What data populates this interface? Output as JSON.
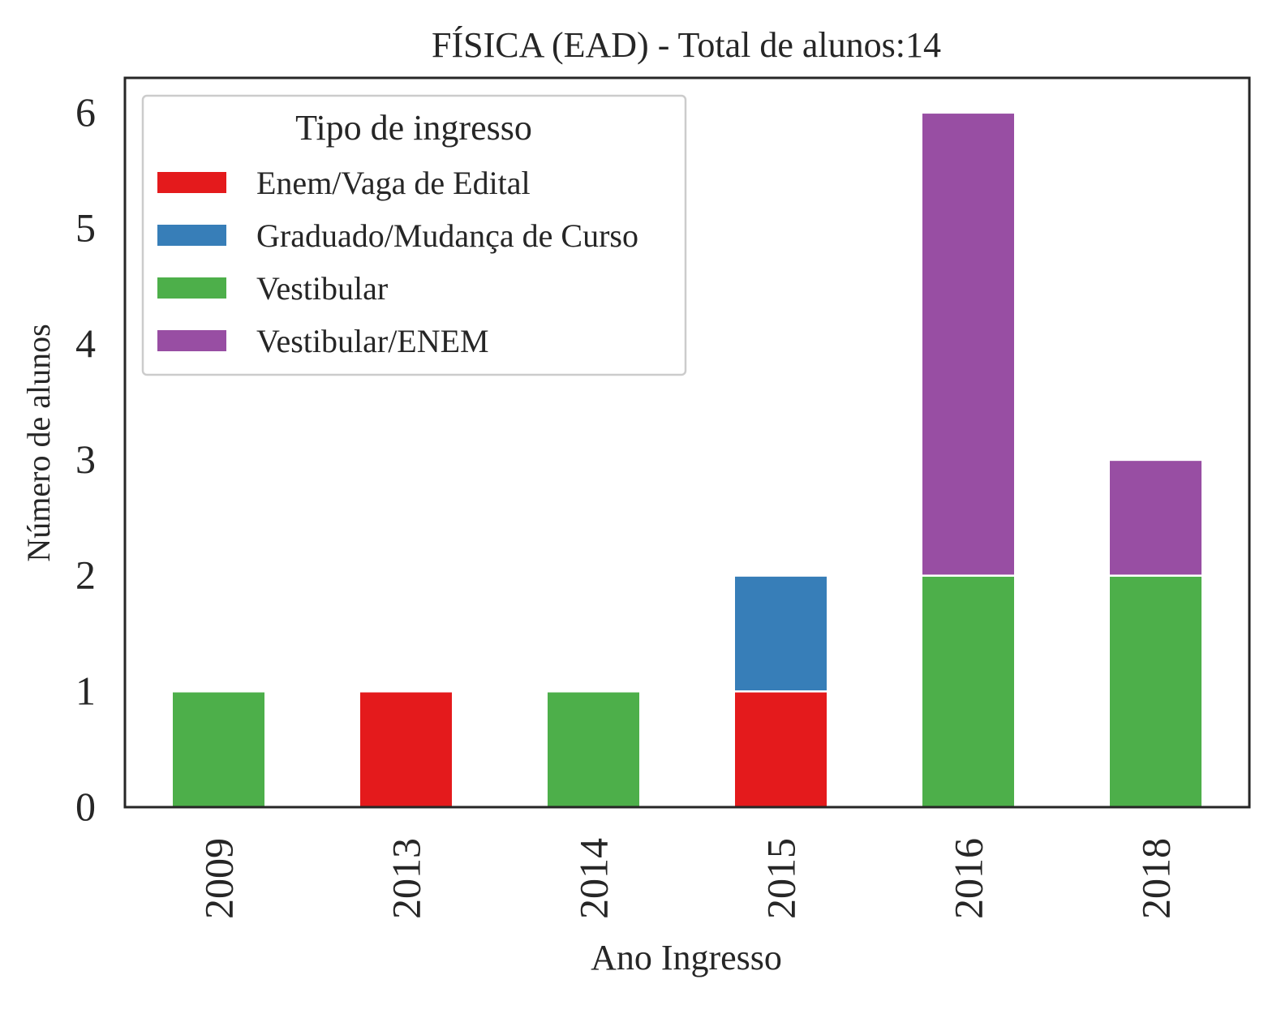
{
  "chart_data": {
    "type": "bar",
    "stacked": true,
    "title": "FÍSICA (EAD) - Total de alunos:14",
    "xlabel": "Ano Ingresso",
    "ylabel": "Número de alunos",
    "categories": [
      "2009",
      "2013",
      "2014",
      "2015",
      "2016",
      "2018"
    ],
    "yticks": [
      "0",
      "1",
      "2",
      "3",
      "4",
      "5",
      "6"
    ],
    "ylim": [
      0,
      6.3
    ],
    "grid": false,
    "legend": {
      "title": "Tipo de ingresso",
      "placement": "top-left"
    },
    "series": [
      {
        "name": "Enem/Vaga de Edital",
        "color": "#e41a1c",
        "values": [
          0,
          1,
          0,
          1,
          0,
          0
        ]
      },
      {
        "name": "Graduado/Mudança de Curso",
        "color": "#377eb8",
        "values": [
          0,
          0,
          0,
          1,
          0,
          0
        ]
      },
      {
        "name": "Vestibular",
        "color": "#4daf4a",
        "values": [
          1,
          0,
          1,
          0,
          2,
          2
        ]
      },
      {
        "name": "Vestibular/ENEM",
        "color": "#984ea3",
        "values": [
          0,
          0,
          0,
          0,
          4,
          1
        ]
      }
    ]
  }
}
